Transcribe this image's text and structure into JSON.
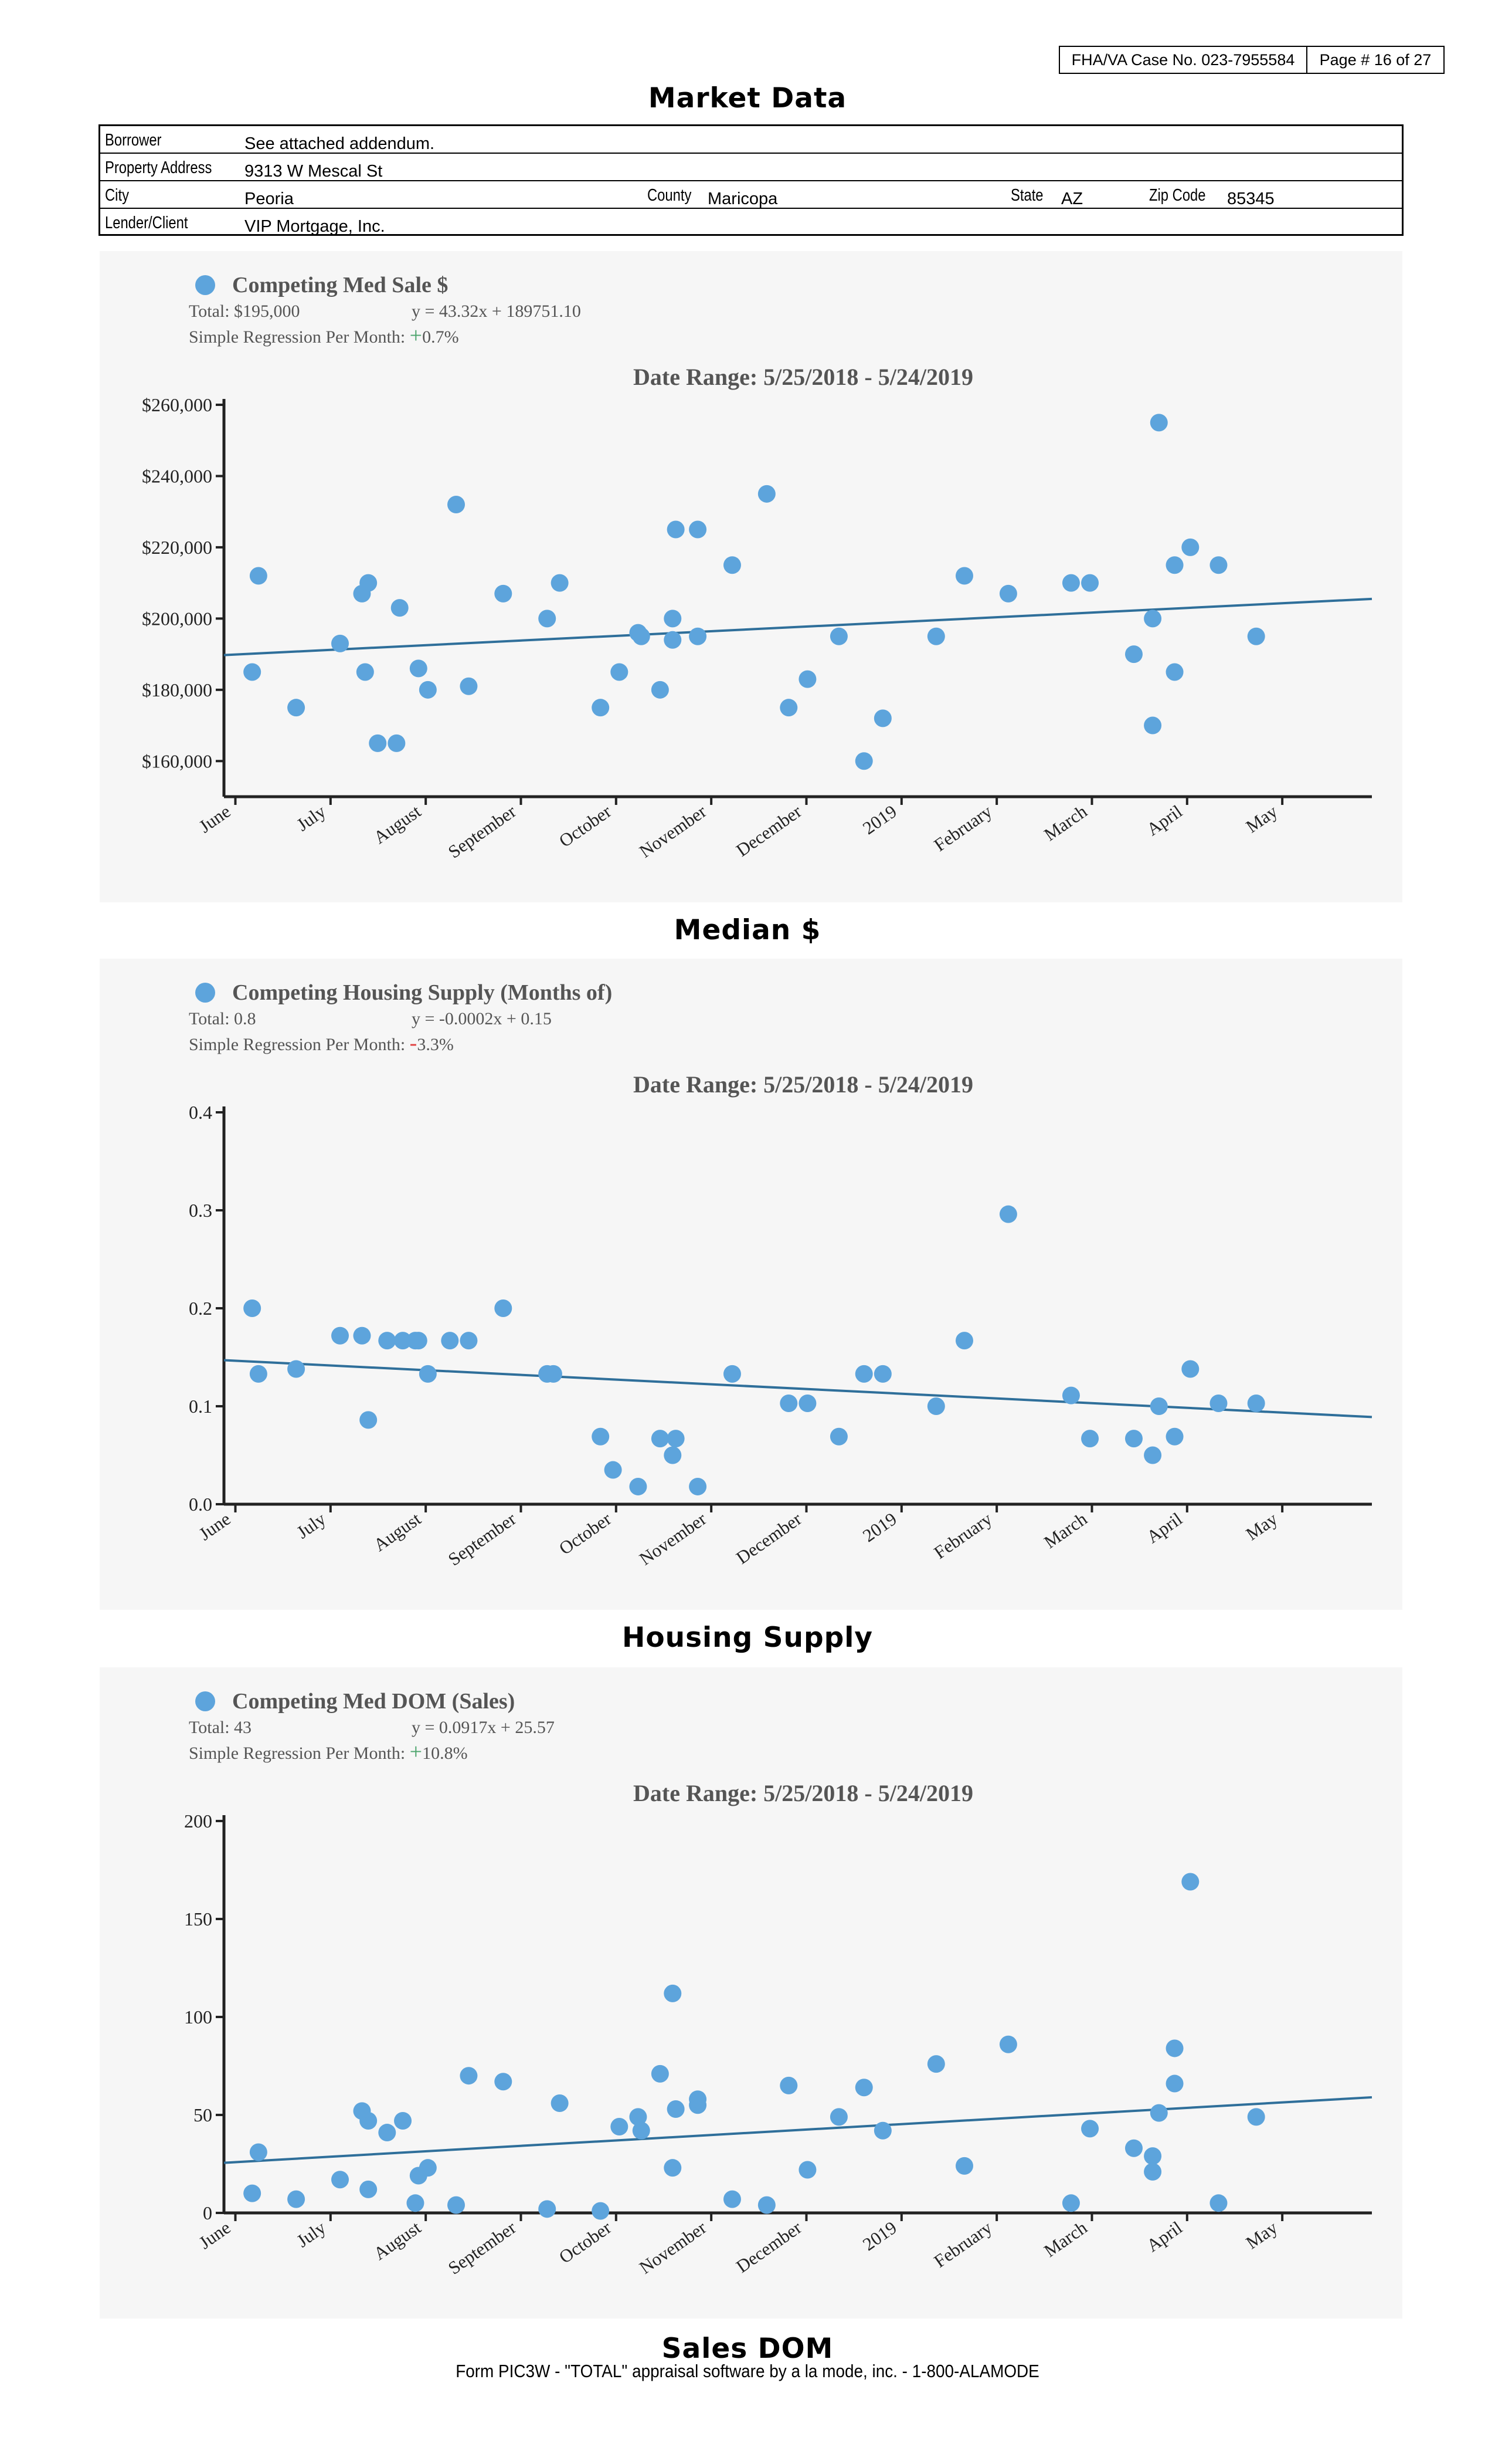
{
  "header": {
    "case_no": "FHA/VA Case No. 023-7955584",
    "page": "Page # 16 of 27"
  },
  "title": "Market Data",
  "info": {
    "borrower_label": "Borrower",
    "borrower": "See attached addendum.",
    "address_label": "Property Address",
    "address": "9313 W Mescal St",
    "city_label": "City",
    "city": "Peoria",
    "county_label": "County",
    "county": "Maricopa",
    "state_label": "State",
    "state": "AZ",
    "zip_label": "Zip Code",
    "zip": "85345",
    "lender_label": "Lender/Client",
    "lender": "VIP Mortgage, Inc."
  },
  "captions": [
    "Median $",
    "Housing Supply",
    "Sales DOM"
  ],
  "footer": "Form PIC3W - \"TOTAL\" appraisal software by a la mode, inc. - 1-800-ALAMODE",
  "colors": {
    "dot": "#5da4dc",
    "line": "#2f6f9a",
    "panel": "#f6f6f6",
    "plus": "#4aa36b",
    "minus": "#e04040"
  },
  "chart_data": [
    {
      "type": "scatter",
      "legend": "Competing Med Sale $",
      "total": "Total: $195,000",
      "equation": "y = 43.32x + 189751.10",
      "regression_label": "Simple Regression Per Month:",
      "regression_sign": "+",
      "regression_value": "0.7%",
      "title": "Date Range: 5/25/2018 - 5/24/2019",
      "x_ticks": [
        "June",
        "July",
        "August",
        "September",
        "October",
        "November",
        "December",
        "2019",
        "February",
        "March",
        "April",
        "May"
      ],
      "y_ticks": [
        "$160,000",
        "$180,000",
        "$200,000",
        "$220,000",
        "$240,000",
        "$260,000"
      ],
      "y_tick_values": [
        160000,
        180000,
        200000,
        220000,
        240000,
        260000
      ],
      "ylim": [
        150000,
        260000
      ],
      "xlim": [
        0,
        364
      ],
      "trend": [
        189751,
        205522
      ],
      "points": [
        [
          9,
          185000
        ],
        [
          11,
          212000
        ],
        [
          23,
          175000
        ],
        [
          37,
          193000
        ],
        [
          44,
          207000
        ],
        [
          45,
          185000
        ],
        [
          46,
          210000
        ],
        [
          49,
          165000
        ],
        [
          56,
          203000
        ],
        [
          62,
          186000
        ],
        [
          55,
          165000
        ],
        [
          65,
          180000
        ],
        [
          74,
          232000
        ],
        [
          78,
          181000
        ],
        [
          89,
          207000
        ],
        [
          103,
          200000
        ],
        [
          107,
          210000
        ],
        [
          120,
          175000
        ],
        [
          126,
          185000
        ],
        [
          132,
          196000
        ],
        [
          133,
          195000
        ],
        [
          139,
          180000
        ],
        [
          143,
          200000
        ],
        [
          144,
          225000
        ],
        [
          143,
          194000
        ],
        [
          151,
          225000
        ],
        [
          151,
          195000
        ],
        [
          162,
          215000
        ],
        [
          173,
          235000
        ],
        [
          180,
          175000
        ],
        [
          186,
          183000
        ],
        [
          196,
          195000
        ],
        [
          204,
          160000
        ],
        [
          210,
          172000
        ],
        [
          227,
          195000
        ],
        [
          236,
          212000
        ],
        [
          250,
          207000
        ],
        [
          270,
          210000
        ],
        [
          276,
          210000
        ],
        [
          290,
          190000
        ],
        [
          296,
          200000
        ],
        [
          296,
          170000
        ],
        [
          298,
          255000
        ],
        [
          303,
          185000
        ],
        [
          303,
          215000
        ],
        [
          308,
          220000
        ],
        [
          317,
          215000
        ],
        [
          329,
          195000
        ]
      ]
    },
    {
      "type": "scatter",
      "legend": "Competing Housing Supply (Months of)",
      "total": "Total: 0.8",
      "equation": "y = -0.0002x + 0.15",
      "regression_label": "Simple Regression Per Month:",
      "regression_sign": "-",
      "regression_value": "3.3%",
      "title": "Date Range: 5/25/2018 - 5/24/2019",
      "x_ticks": [
        "June",
        "July",
        "August",
        "September",
        "October",
        "November",
        "December",
        "2019",
        "February",
        "March",
        "April",
        "May"
      ],
      "y_ticks": [
        "0.0",
        "0.1",
        "0.2",
        "0.3",
        "0.4"
      ],
      "y_tick_values": [
        0,
        0.1,
        0.2,
        0.3,
        0.4
      ],
      "ylim": [
        0,
        0.4
      ],
      "xlim": [
        0,
        364
      ],
      "trend": [
        0.147,
        0.089
      ],
      "points": [
        [
          9,
          0.2
        ],
        [
          11,
          0.133
        ],
        [
          23,
          0.138
        ],
        [
          37,
          0.172
        ],
        [
          44,
          0.172
        ],
        [
          46,
          0.086
        ],
        [
          52,
          0.167
        ],
        [
          57,
          0.167
        ],
        [
          61,
          0.167
        ],
        [
          62,
          0.167
        ],
        [
          65,
          0.133
        ],
        [
          72,
          0.167
        ],
        [
          78,
          0.167
        ],
        [
          89,
          0.2
        ],
        [
          103,
          0.133
        ],
        [
          105,
          0.133
        ],
        [
          120,
          0.069
        ],
        [
          124,
          0.035
        ],
        [
          132,
          0.018
        ],
        [
          139,
          0.067
        ],
        [
          143,
          0.05
        ],
        [
          144,
          0.067
        ],
        [
          151,
          0.018
        ],
        [
          162,
          0.133
        ],
        [
          180,
          0.103
        ],
        [
          186,
          0.103
        ],
        [
          196,
          0.069
        ],
        [
          204,
          0.133
        ],
        [
          210,
          0.133
        ],
        [
          227,
          0.1
        ],
        [
          236,
          0.167
        ],
        [
          250,
          0.296
        ],
        [
          270,
          0.111
        ],
        [
          276,
          0.067
        ],
        [
          290,
          0.067
        ],
        [
          296,
          0.05
        ],
        [
          298,
          0.1
        ],
        [
          303,
          0.069
        ],
        [
          308,
          0.138
        ],
        [
          317,
          0.103
        ],
        [
          329,
          0.103
        ]
      ]
    },
    {
      "type": "scatter",
      "legend": "Competing Med DOM (Sales)",
      "total": "Total: 43",
      "equation": "y = 0.0917x + 25.57",
      "regression_label": "Simple Regression Per Month:",
      "regression_sign": "+",
      "regression_value": "10.8%",
      "title": "Date Range: 5/25/2018 - 5/24/2019",
      "x_ticks": [
        "June",
        "July",
        "August",
        "September",
        "October",
        "November",
        "December",
        "2019",
        "February",
        "March",
        "April",
        "May"
      ],
      "y_ticks": [
        "0",
        "50",
        "100",
        "150",
        "200"
      ],
      "y_tick_values": [
        0,
        50,
        100,
        150,
        200
      ],
      "ylim": [
        0,
        200
      ],
      "xlim": [
        0,
        364
      ],
      "trend": [
        25.57,
        59
      ],
      "points": [
        [
          9,
          10
        ],
        [
          11,
          31
        ],
        [
          23,
          7
        ],
        [
          37,
          17
        ],
        [
          44,
          52
        ],
        [
          46,
          47
        ],
        [
          46,
          12
        ],
        [
          52,
          41
        ],
        [
          57,
          47
        ],
        [
          62,
          19
        ],
        [
          65,
          23
        ],
        [
          61,
          5
        ],
        [
          74,
          4
        ],
        [
          78,
          70
        ],
        [
          89,
          67
        ],
        [
          103,
          2
        ],
        [
          107,
          56
        ],
        [
          120,
          1
        ],
        [
          126,
          44
        ],
        [
          132,
          49
        ],
        [
          133,
          42
        ],
        [
          139,
          71
        ],
        [
          143,
          112
        ],
        [
          143,
          23
        ],
        [
          144,
          53
        ],
        [
          151,
          55
        ],
        [
          151,
          58
        ],
        [
          162,
          7
        ],
        [
          180,
          65
        ],
        [
          173,
          4
        ],
        [
          186,
          22
        ],
        [
          196,
          49
        ],
        [
          204,
          64
        ],
        [
          210,
          42
        ],
        [
          227,
          76
        ],
        [
          236,
          24
        ],
        [
          250,
          86
        ],
        [
          270,
          5
        ],
        [
          276,
          43
        ],
        [
          290,
          33
        ],
        [
          296,
          29
        ],
        [
          296,
          21
        ],
        [
          298,
          51
        ],
        [
          303,
          84
        ],
        [
          303,
          66
        ],
        [
          308,
          169
        ],
        [
          317,
          5
        ],
        [
          329,
          49
        ]
      ]
    }
  ]
}
